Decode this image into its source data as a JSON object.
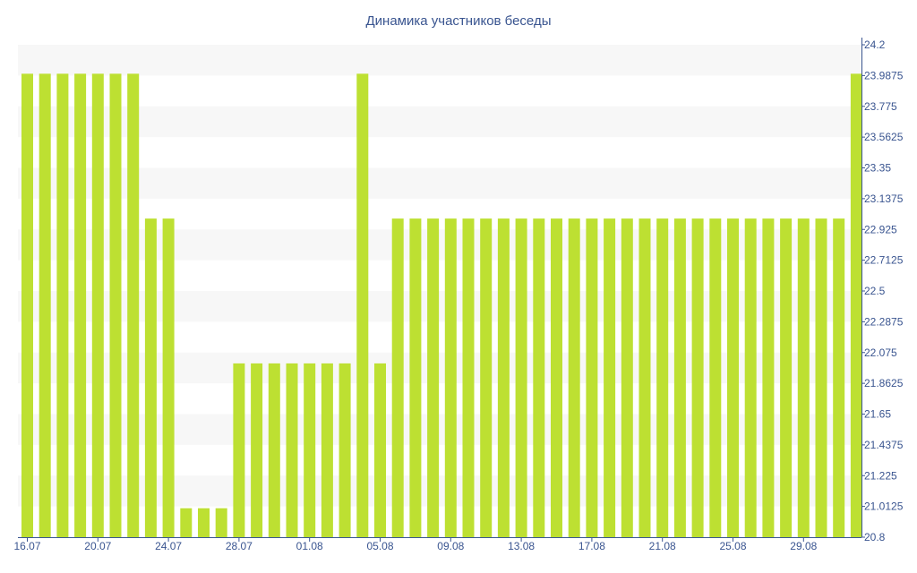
{
  "chart_data": {
    "type": "bar",
    "title": "Динамика участников беседы",
    "xlabel": "",
    "ylabel": "",
    "ylim": [
      20.8,
      24.2
    ],
    "y_ticks": [
      "20.8",
      "21.0125",
      "21.225",
      "21.4375",
      "21.65",
      "21.8625",
      "22.075",
      "22.2875",
      "22.5",
      "22.7125",
      "22.925",
      "23.1375",
      "23.35",
      "23.5625",
      "23.775",
      "23.9875",
      "24.2"
    ],
    "x_ticks": [
      "16.07",
      "20.07",
      "24.07",
      "28.07",
      "01.08",
      "05.08",
      "09.08",
      "13.08",
      "17.08",
      "21.08",
      "25.08",
      "29.08"
    ],
    "y_axis_position": "right",
    "grid": "alternating horizontal bands",
    "bar_color": "#bde032",
    "band_color": "#f7f7f7",
    "text_color": "#3a5590",
    "categories": [
      "16.07",
      "17.07",
      "18.07",
      "19.07",
      "20.07",
      "21.07",
      "22.07",
      "23.07",
      "24.07",
      "25.07",
      "26.07",
      "27.07",
      "28.07",
      "29.07",
      "30.07",
      "31.07",
      "01.08",
      "02.08",
      "03.08",
      "04.08",
      "05.08",
      "06.08",
      "07.08",
      "08.08",
      "09.08",
      "10.08",
      "11.08",
      "12.08",
      "13.08",
      "14.08",
      "15.08",
      "16.08",
      "17.08",
      "18.08",
      "19.08",
      "20.08",
      "21.08",
      "22.08",
      "23.08",
      "24.08",
      "25.08",
      "26.08",
      "27.08",
      "28.08",
      "29.08",
      "30.08",
      "31.08",
      "01.09"
    ],
    "values": [
      24,
      24,
      24,
      24,
      24,
      24,
      24,
      23,
      23,
      21,
      21,
      21,
      22,
      22,
      22,
      22,
      22,
      22,
      22,
      24,
      22,
      23,
      23,
      23,
      23,
      23,
      23,
      23,
      23,
      23,
      23,
      23,
      23,
      23,
      23,
      23,
      23,
      23,
      23,
      23,
      23,
      23,
      23,
      23,
      23,
      23,
      23,
      24
    ]
  }
}
